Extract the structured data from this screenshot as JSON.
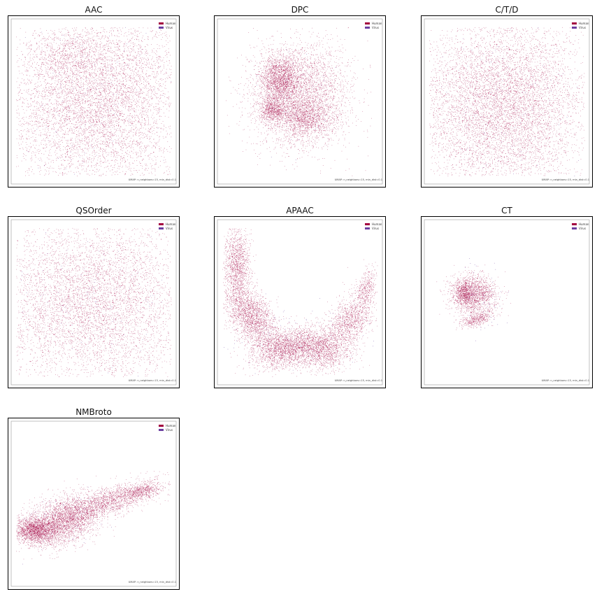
{
  "legend_colors": {
    "Human": "#a3003f",
    "Virus": "#6b3fa0"
  },
  "chart_data": [
    {
      "type": "scatter",
      "title": "AAC",
      "legend": [
        "Human",
        "Virus"
      ],
      "legend_position": "top-right",
      "annotation": "UMAP: n_neighbors=15, min_dist=0.1",
      "grid": false,
      "series": [
        {
          "name": "Human",
          "color": "#a3003f",
          "clusters": [
            [
              0.5,
              0.47,
              0.28,
              0.3,
              0.0,
              7600
            ],
            [
              0.34,
              0.22,
              0.1,
              0.06,
              0.0,
              300
            ]
          ]
        },
        {
          "name": "Virus",
          "color": "#6b3fa0",
          "clusters": [
            [
              0.5,
              0.47,
              0.24,
              0.28,
              0.0,
              120
            ]
          ]
        }
      ]
    },
    {
      "type": "scatter",
      "title": "DPC",
      "legend": [
        "Human",
        "Virus"
      ],
      "legend_position": "top-right",
      "annotation": "UMAP: n_neighbors=15, min_dist=0.1",
      "grid": false,
      "series": [
        {
          "name": "Human",
          "color": "#a3003f",
          "clusters": [
            [
              0.38,
              0.36,
              0.06,
              0.07,
              0.0,
              1500
            ],
            [
              0.5,
              0.46,
              0.15,
              0.16,
              0.0,
              3600
            ],
            [
              0.33,
              0.55,
              0.04,
              0.04,
              0.0,
              700
            ],
            [
              0.53,
              0.6,
              0.08,
              0.05,
              0.0,
              900
            ]
          ]
        },
        {
          "name": "Virus",
          "color": "#6b3fa0",
          "clusters": [
            [
              0.45,
              0.45,
              0.12,
              0.14,
              0.0,
              60
            ]
          ]
        }
      ]
    },
    {
      "type": "scatter",
      "title": "C/T/D",
      "legend": [
        "Human",
        "Virus"
      ],
      "legend_position": "top-right",
      "annotation": "UMAP: n_neighbors=15, min_dist=0.1",
      "grid": false,
      "series": [
        {
          "name": "Human",
          "color": "#a3003f",
          "clusters": [
            [
              0.47,
              0.52,
              0.26,
              0.27,
              0.0,
              7600
            ]
          ]
        },
        {
          "name": "Virus",
          "color": "#6b3fa0",
          "clusters": [
            [
              0.47,
              0.52,
              0.24,
              0.25,
              0.0,
              120
            ]
          ]
        }
      ]
    },
    {
      "type": "scatter",
      "title": "QSOrder",
      "legend": [
        "Human",
        "Virus"
      ],
      "legend_position": "top-right",
      "annotation": "UMAP: n_neighbors=15, min_dist=0.1",
      "grid": false,
      "series": [
        {
          "name": "Human",
          "color": "#a3003f",
          "clusters": [
            [
              0.48,
              0.5,
              0.32,
              0.27,
              0.0,
              6500
            ]
          ]
        },
        {
          "name": "Virus",
          "color": "#6b3fa0",
          "clusters": [
            [
              0.48,
              0.5,
              0.3,
              0.25,
              0.0,
              110
            ]
          ]
        }
      ]
    },
    {
      "type": "scatter",
      "title": "APAAC",
      "legend": [
        "Human",
        "Virus"
      ],
      "legend_position": "top-right",
      "annotation": "UMAP: n_neighbors=15, min_dist=0.1",
      "grid": false,
      "series": [
        {
          "name": "Human",
          "color": "#a3003f",
          "clusters": [
            [
              0.12,
              0.28,
              0.04,
              0.12,
              0.0,
              1300
            ],
            [
              0.2,
              0.58,
              0.06,
              0.1,
              -0.6,
              1800
            ],
            [
              0.4,
              0.78,
              0.1,
              0.06,
              -0.2,
              1900
            ],
            [
              0.62,
              0.78,
              0.09,
              0.06,
              0.3,
              1500
            ],
            [
              0.8,
              0.62,
              0.06,
              0.09,
              0.6,
              1100
            ],
            [
              0.9,
              0.42,
              0.03,
              0.07,
              0.3,
              400
            ]
          ]
        },
        {
          "name": "Virus",
          "color": "#6b3fa0",
          "clusters": [
            [
              0.45,
              0.7,
              0.25,
              0.12,
              0.0,
              100
            ]
          ]
        }
      ]
    },
    {
      "type": "scatter",
      "title": "CT",
      "legend": [
        "Human",
        "Virus"
      ],
      "legend_position": "top-right",
      "annotation": "UMAP: n_neighbors=15, min_dist=0.1",
      "grid": false,
      "series": [
        {
          "name": "Human",
          "color": "#a3003f",
          "clusters": [
            [
              0.3,
              0.45,
              0.07,
              0.06,
              0.0,
              1500
            ],
            [
              0.24,
              0.44,
              0.03,
              0.04,
              0.0,
              500
            ],
            [
              0.32,
              0.6,
              0.05,
              0.02,
              -0.3,
              400
            ]
          ]
        },
        {
          "name": "Virus",
          "color": "#6b3fa0",
          "clusters": [
            [
              0.34,
              0.48,
              0.08,
              0.1,
              0.0,
              60
            ]
          ]
        }
      ]
    },
    {
      "type": "scatter",
      "title": "NMBroto",
      "legend": [
        "Human",
        "Virus"
      ],
      "legend_position": "top-right",
      "annotation": "UMAP: n_neighbors=15, min_dist=0.1",
      "grid": false,
      "series": [
        {
          "name": "Human",
          "color": "#a3003f",
          "clusters": [
            [
              0.14,
              0.66,
              0.07,
              0.04,
              0.0,
              1800
            ],
            [
              0.32,
              0.6,
              0.11,
              0.07,
              -0.35,
              2600
            ],
            [
              0.6,
              0.48,
              0.16,
              0.04,
              -0.3,
              1700
            ],
            [
              0.8,
              0.42,
              0.05,
              0.02,
              -0.2,
              350
            ]
          ]
        },
        {
          "name": "Virus",
          "color": "#6b3fa0",
          "clusters": [
            [
              0.35,
              0.58,
              0.15,
              0.07,
              -0.3,
              80
            ]
          ]
        }
      ]
    }
  ]
}
